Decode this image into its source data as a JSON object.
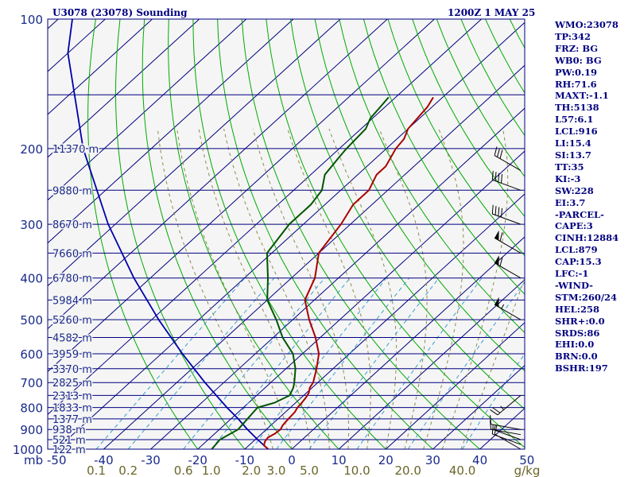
{
  "header": {
    "station": "U3078 (23078) Sounding",
    "time": "1200Z  1 MAY 25"
  },
  "indices": [
    "WMO:23078",
    "TP:342",
    "FRZ: BG",
    "WB0: BG",
    "PW:0.19",
    "RH:71.6",
    "MAXT:-1.1",
    "TH:5138",
    "L57:6.1",
    "LCL:916",
    "LI:15.4",
    "SI:13.7",
    "TT:35",
    "KI:-3",
    "SW:228",
    "EI:3.7",
    "-PARCEL-",
    "CAPE:3",
    "CINH:12884",
    "LCL:879",
    "CAP:15.3",
    "LFC:-1",
    "-WIND-",
    "STM:260/24",
    "HEL:258",
    "SHR+:0.0",
    "SRDS:86",
    "EHI:0.0",
    "BRN:0.0",
    "BSHR:197"
  ],
  "colors": {
    "isobar": "#000080",
    "isotherm": "#000080",
    "dry_adiabat": "#00aa00",
    "moist_adiabat": "#8c8c50",
    "mixing_ratio": "#3aa0d0",
    "temperature": "#aa0000",
    "dewpoint": "#005500",
    "parcel": "#0000aa",
    "wind_barb": "#000000",
    "plot_background": "#f5f5f5"
  },
  "chart_data": {
    "type": "skew-t",
    "pressure_unit_label": "mb",
    "mixing_ratio_unit_label": "g/kg",
    "pressure_levels": [
      100,
      200,
      300,
      400,
      500,
      600,
      700,
      800,
      900,
      1000
    ],
    "pressure_tick_labels": [
      "100",
      "200",
      "300",
      "400",
      "500",
      "600",
      "700",
      "800",
      "900",
      "1000"
    ],
    "extra_isobars": [
      150,
      250,
      350,
      450,
      550,
      650,
      750,
      850,
      950
    ],
    "height_levels": [
      {
        "p": 200,
        "label": "11370 m"
      },
      {
        "p": 250,
        "label": "9880 m"
      },
      {
        "p": 300,
        "label": "8670 m"
      },
      {
        "p": 350,
        "label": "7660 m"
      },
      {
        "p": 400,
        "label": "6780 m"
      },
      {
        "p": 450,
        "label": "5984 m"
      },
      {
        "p": 500,
        "label": "5260 m"
      },
      {
        "p": 550,
        "label": "4582 m"
      },
      {
        "p": 600,
        "label": "3959 m"
      },
      {
        "p": 650,
        "label": "3370 m"
      },
      {
        "p": 700,
        "label": "2825 m"
      },
      {
        "p": 750,
        "label": "2313 m"
      },
      {
        "p": 800,
        "label": "1833 m"
      },
      {
        "p": 850,
        "label": "1377 m"
      },
      {
        "p": 900,
        "label": "938 m"
      },
      {
        "p": 950,
        "label": "521 m"
      },
      {
        "p": 1000,
        "label": "122 m"
      }
    ],
    "temperature_ticks": [
      -50,
      -40,
      -30,
      -20,
      -10,
      0,
      10,
      20,
      30,
      40,
      50
    ],
    "temperature_tick_labels": [
      "-50",
      "-40",
      "-30",
      "-20",
      "-10",
      "0",
      "10",
      "20",
      "30",
      "40",
      "50"
    ],
    "mixing_ratio_ticks": [
      0.1,
      0.2,
      0.6,
      1.0,
      2.0,
      3.0,
      5.0,
      10.0,
      20.0,
      40.0
    ],
    "mixing_ratio_tick_labels": [
      "0.1",
      "0.2",
      "0.6",
      "1.0",
      "2.0",
      "3.0",
      "5.0",
      "10.0",
      "20.0",
      "40.0"
    ],
    "dry_adiabats_theta_c": [
      -20,
      -10,
      0,
      10,
      20,
      30,
      40,
      50,
      60,
      70,
      80,
      90,
      100,
      110,
      120,
      130,
      140,
      150,
      160,
      170,
      180,
      190,
      200,
      210,
      220
    ],
    "moist_adiabats_thetaw_c": [
      -4,
      0,
      4,
      8,
      12,
      16,
      20,
      24,
      28,
      32,
      36
    ],
    "temperature_profile": [
      {
        "p": 1000,
        "t": -5.0
      },
      {
        "p": 980,
        "t": -6.8
      },
      {
        "p": 960,
        "t": -7.5
      },
      {
        "p": 940,
        "t": -7.8
      },
      {
        "p": 920,
        "t": -7.2
      },
      {
        "p": 900,
        "t": -7.0
      },
      {
        "p": 880,
        "t": -7.5
      },
      {
        "p": 850,
        "t": -7.8
      },
      {
        "p": 820,
        "t": -8.0
      },
      {
        "p": 800,
        "t": -8.5
      },
      {
        "p": 780,
        "t": -8.7
      },
      {
        "p": 760,
        "t": -9.0
      },
      {
        "p": 740,
        "t": -9.5
      },
      {
        "p": 720,
        "t": -10.5
      },
      {
        "p": 700,
        "t": -11.0
      },
      {
        "p": 650,
        "t": -13.5
      },
      {
        "p": 600,
        "t": -16.5
      },
      {
        "p": 550,
        "t": -21.0
      },
      {
        "p": 500,
        "t": -26.5
      },
      {
        "p": 450,
        "t": -32.0
      },
      {
        "p": 400,
        "t": -35.0
      },
      {
        "p": 350,
        "t": -40.0
      },
      {
        "p": 300,
        "t": -42.0
      },
      {
        "p": 270,
        "t": -44.0
      },
      {
        "p": 250,
        "t": -44.0
      },
      {
        "p": 230,
        "t": -46.0
      },
      {
        "p": 220,
        "t": -46.0
      },
      {
        "p": 200,
        "t": -48.0
      },
      {
        "p": 190,
        "t": -48.5
      },
      {
        "p": 180,
        "t": -50.0
      },
      {
        "p": 160,
        "t": -51.0
      },
      {
        "p": 152,
        "t": -52.0
      }
    ],
    "dewpoint_profile": [
      {
        "p": 1000,
        "t": -17.0
      },
      {
        "p": 950,
        "t": -17.5
      },
      {
        "p": 900,
        "t": -16.0
      },
      {
        "p": 850,
        "t": -16.5
      },
      {
        "p": 800,
        "t": -17.0
      },
      {
        "p": 780,
        "t": -14.5
      },
      {
        "p": 750,
        "t": -13.0
      },
      {
        "p": 720,
        "t": -14.0
      },
      {
        "p": 700,
        "t": -15.0
      },
      {
        "p": 650,
        "t": -18.0
      },
      {
        "p": 600,
        "t": -22.0
      },
      {
        "p": 550,
        "t": -28.0
      },
      {
        "p": 500,
        "t": -33.5
      },
      {
        "p": 450,
        "t": -40.0
      },
      {
        "p": 400,
        "t": -45.0
      },
      {
        "p": 350,
        "t": -51.0
      },
      {
        "p": 300,
        "t": -53.0
      },
      {
        "p": 270,
        "t": -53.0
      },
      {
        "p": 250,
        "t": -54.0
      },
      {
        "p": 230,
        "t": -57.0
      },
      {
        "p": 210,
        "t": -58.0
      },
      {
        "p": 200,
        "t": -58.5
      },
      {
        "p": 180,
        "t": -59.0
      },
      {
        "p": 170,
        "t": -60.5
      },
      {
        "p": 160,
        "t": -61.0
      },
      {
        "p": 152,
        "t": -61.5
      }
    ],
    "parcel_profile": [
      {
        "p": 1000,
        "t": -5.0
      },
      {
        "p": 950,
        "t": -9.5
      },
      {
        "p": 900,
        "t": -14.0
      },
      {
        "p": 850,
        "t": -18.5
      },
      {
        "p": 800,
        "t": -23.5
      },
      {
        "p": 700,
        "t": -34.0
      },
      {
        "p": 600,
        "t": -45.5
      },
      {
        "p": 500,
        "t": -58.5
      },
      {
        "p": 400,
        "t": -73.5
      },
      {
        "p": 300,
        "t": -91.5
      },
      {
        "p": 200,
        "t": -114.5
      },
      {
        "p": 120,
        "t": -140.0
      },
      {
        "p": 100,
        "t": -147.0
      }
    ],
    "wind_barbs": [
      {
        "p": 1000,
        "dir": 300,
        "spd": 10
      },
      {
        "p": 975,
        "dir": 290,
        "spd": 10
      },
      {
        "p": 950,
        "dir": 290,
        "spd": 5
      },
      {
        "p": 925,
        "dir": 280,
        "spd": 10
      },
      {
        "p": 900,
        "dir": 280,
        "spd": 10
      },
      {
        "p": 750,
        "dir": 230,
        "spd": 25
      },
      {
        "p": 500,
        "dir": 300,
        "spd": 55
      },
      {
        "p": 400,
        "dir": 300,
        "spd": 60
      },
      {
        "p": 350,
        "dir": 300,
        "spd": 60
      },
      {
        "p": 300,
        "dir": 290,
        "spd": 40
      },
      {
        "p": 250,
        "dir": 290,
        "spd": 40
      },
      {
        "p": 225,
        "dir": 300,
        "spd": 30
      }
    ]
  }
}
